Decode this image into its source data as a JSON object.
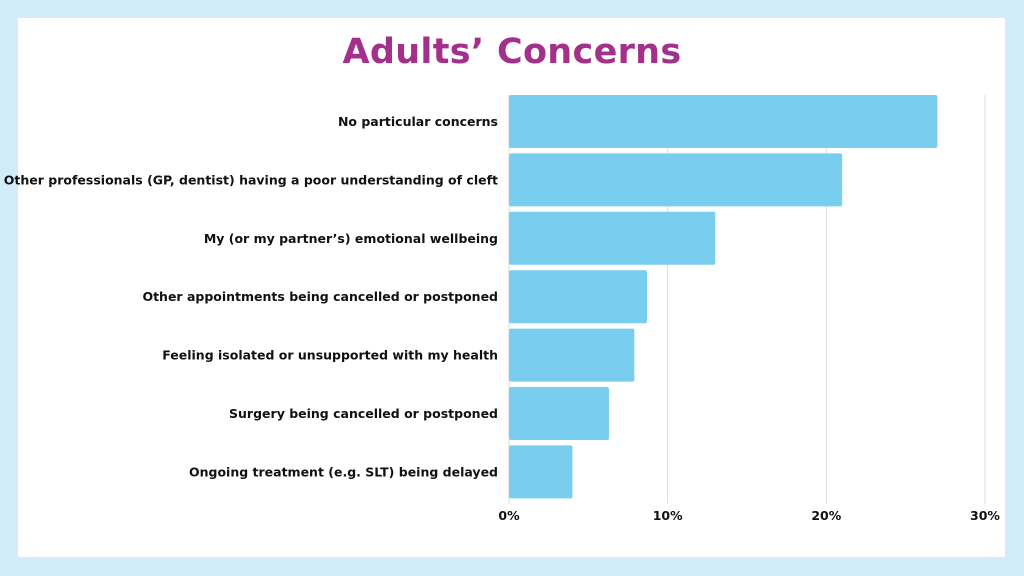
{
  "colors": {
    "page_background": "#d3ecfa",
    "card_background": "#ffffff",
    "title": "#a3308a",
    "bar": "#79cef0",
    "grid": "#dddddd"
  },
  "chart_data": {
    "type": "bar",
    "orientation": "horizontal",
    "title": "Adults’ Concerns",
    "xlabel": "",
    "ylabel": "",
    "categories": [
      "No particular concerns",
      "Other professionals (GP, dentist) having a poor understanding of cleft",
      "My (or my partner’s) emotional wellbeing",
      "Other appointments being cancelled or postponed",
      "Feeling isolated or unsupported with my health",
      "Surgery being cancelled or postponed",
      "Ongoing treatment (e.g. SLT) being delayed"
    ],
    "values": [
      27.0,
      21.0,
      13.0,
      8.7,
      7.9,
      6.3,
      4.0
    ],
    "unit": "%",
    "xlim": [
      0,
      30
    ],
    "ticks": [
      "0%",
      "10%",
      "20%",
      "30%"
    ],
    "tick_values": [
      0,
      10,
      20,
      30
    ],
    "grid": true
  }
}
